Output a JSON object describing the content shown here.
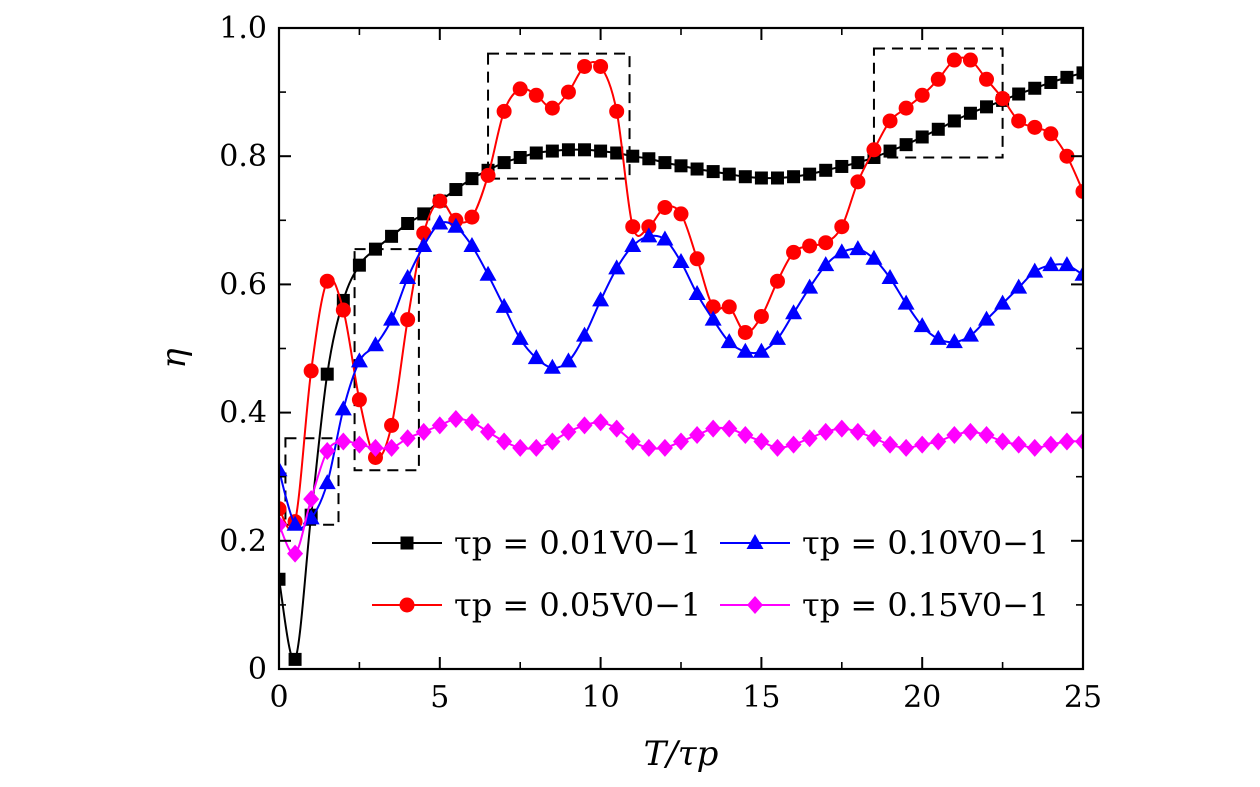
{
  "chart_data": {
    "type": "line",
    "xlabel": "T/τp",
    "ylabel": "η",
    "xlim": [
      0,
      25
    ],
    "ylim": [
      0,
      1.0
    ],
    "x_ticks": [
      "0",
      "5",
      "10",
      "15",
      "20",
      "25"
    ],
    "y_ticks": [
      "0",
      "0.2",
      "0.4",
      "0.6",
      "0.8",
      "1.0"
    ],
    "grid": false,
    "legend_position": "bottom-center, two columns",
    "series": [
      {
        "name": "τp = 0.01V0−1",
        "color": "#000000",
        "marker": "square",
        "x": [
          0,
          0.5,
          1,
          1.5,
          2,
          2.5,
          3,
          3.5,
          4,
          4.5,
          5,
          5.5,
          6,
          6.5,
          7,
          7.5,
          8,
          8.5,
          9,
          9.5,
          10,
          10.5,
          11,
          11.5,
          12,
          12.5,
          13,
          13.5,
          14,
          14.5,
          15,
          15.5,
          16,
          16.5,
          17,
          17.5,
          18,
          18.5,
          19,
          19.5,
          20,
          20.5,
          21,
          21.5,
          22,
          22.5,
          23,
          23.5,
          24,
          24.5,
          25
        ],
        "y": [
          0.14,
          0.015,
          0.24,
          0.46,
          0.575,
          0.63,
          0.655,
          0.675,
          0.695,
          0.71,
          0.73,
          0.748,
          0.765,
          0.778,
          0.79,
          0.798,
          0.805,
          0.808,
          0.81,
          0.81,
          0.808,
          0.805,
          0.8,
          0.796,
          0.79,
          0.785,
          0.78,
          0.776,
          0.772,
          0.768,
          0.766,
          0.766,
          0.768,
          0.772,
          0.778,
          0.784,
          0.79,
          0.798,
          0.808,
          0.818,
          0.83,
          0.842,
          0.855,
          0.867,
          0.877,
          0.887,
          0.897,
          0.906,
          0.915,
          0.923,
          0.93
        ]
      },
      {
        "name": "τp = 0.05V0−1",
        "color": "#ff0000",
        "marker": "circle",
        "x": [
          0,
          0.5,
          1,
          1.5,
          2,
          2.5,
          3,
          3.5,
          4,
          4.5,
          5,
          5.5,
          6,
          6.5,
          7,
          7.5,
          8,
          8.5,
          9,
          9.5,
          10,
          10.5,
          11,
          11.5,
          12,
          12.5,
          13,
          13.5,
          14,
          14.5,
          15,
          15.5,
          16,
          16.5,
          17,
          17.5,
          18,
          18.5,
          19,
          19.5,
          20,
          20.5,
          21,
          21.5,
          22,
          22.5,
          23,
          23.5,
          24,
          24.5,
          25
        ],
        "y": [
          0.25,
          0.23,
          0.465,
          0.605,
          0.56,
          0.42,
          0.33,
          0.38,
          0.545,
          0.68,
          0.73,
          0.7,
          0.705,
          0.77,
          0.87,
          0.905,
          0.895,
          0.875,
          0.9,
          0.94,
          0.94,
          0.87,
          0.69,
          0.69,
          0.72,
          0.71,
          0.64,
          0.565,
          0.565,
          0.525,
          0.55,
          0.605,
          0.65,
          0.66,
          0.665,
          0.69,
          0.76,
          0.81,
          0.855,
          0.875,
          0.895,
          0.92,
          0.95,
          0.95,
          0.92,
          0.89,
          0.855,
          0.845,
          0.835,
          0.8,
          0.745
        ]
      },
      {
        "name": "τp = 0.10V0−1",
        "color": "#0000ff",
        "marker": "triangle",
        "x": [
          0,
          0.5,
          1,
          1.5,
          2,
          2.5,
          3,
          3.5,
          4,
          4.5,
          5,
          5.5,
          6,
          6.5,
          7,
          7.5,
          8,
          8.5,
          9,
          9.5,
          10,
          10.5,
          11,
          11.5,
          12,
          12.5,
          13,
          13.5,
          14,
          14.5,
          15,
          15.5,
          16,
          16.5,
          17,
          17.5,
          18,
          18.5,
          19,
          19.5,
          20,
          20.5,
          21,
          21.5,
          22,
          22.5,
          23,
          23.5,
          24,
          24.5,
          25
        ],
        "y": [
          0.31,
          0.225,
          0.235,
          0.29,
          0.405,
          0.48,
          0.505,
          0.545,
          0.61,
          0.66,
          0.695,
          0.69,
          0.66,
          0.615,
          0.565,
          0.515,
          0.485,
          0.47,
          0.48,
          0.52,
          0.575,
          0.625,
          0.66,
          0.675,
          0.67,
          0.635,
          0.585,
          0.545,
          0.51,
          0.495,
          0.495,
          0.515,
          0.555,
          0.595,
          0.63,
          0.65,
          0.655,
          0.64,
          0.61,
          0.57,
          0.535,
          0.515,
          0.51,
          0.52,
          0.545,
          0.57,
          0.595,
          0.62,
          0.63,
          0.63,
          0.615
        ]
      },
      {
        "name": "τp = 0.15V0−1",
        "color": "#ff00ff",
        "marker": "diamond",
        "x": [
          0,
          0.5,
          1,
          1.5,
          2,
          2.5,
          3,
          3.5,
          4,
          4.5,
          5,
          5.5,
          6,
          6.5,
          7,
          7.5,
          8,
          8.5,
          9,
          9.5,
          10,
          10.5,
          11,
          11.5,
          12,
          12.5,
          13,
          13.5,
          14,
          14.5,
          15,
          15.5,
          16,
          16.5,
          17,
          17.5,
          18,
          18.5,
          19,
          19.5,
          20,
          20.5,
          21,
          21.5,
          22,
          22.5,
          23,
          23.5,
          24,
          24.5,
          25
        ],
        "y": [
          0.225,
          0.18,
          0.265,
          0.34,
          0.355,
          0.35,
          0.345,
          0.345,
          0.36,
          0.37,
          0.38,
          0.39,
          0.385,
          0.37,
          0.355,
          0.345,
          0.345,
          0.355,
          0.37,
          0.38,
          0.385,
          0.375,
          0.355,
          0.345,
          0.345,
          0.355,
          0.365,
          0.375,
          0.375,
          0.365,
          0.355,
          0.345,
          0.35,
          0.36,
          0.37,
          0.375,
          0.37,
          0.36,
          0.35,
          0.345,
          0.35,
          0.355,
          0.365,
          0.37,
          0.365,
          0.355,
          0.35,
          0.345,
          0.35,
          0.355,
          0.355
        ]
      }
    ],
    "annotations": [
      {
        "type": "dashed-box",
        "x": [
          0.2,
          1.85
        ],
        "y": [
          0.225,
          0.36
        ]
      },
      {
        "type": "dashed-box",
        "x": [
          2.35,
          4.35
        ],
        "y": [
          0.31,
          0.655
        ]
      },
      {
        "type": "dashed-box",
        "x": [
          6.5,
          10.9
        ],
        "y": [
          0.765,
          0.96
        ]
      },
      {
        "type": "dashed-box",
        "x": [
          18.5,
          22.5
        ],
        "y": [
          0.798,
          0.968
        ]
      }
    ]
  }
}
